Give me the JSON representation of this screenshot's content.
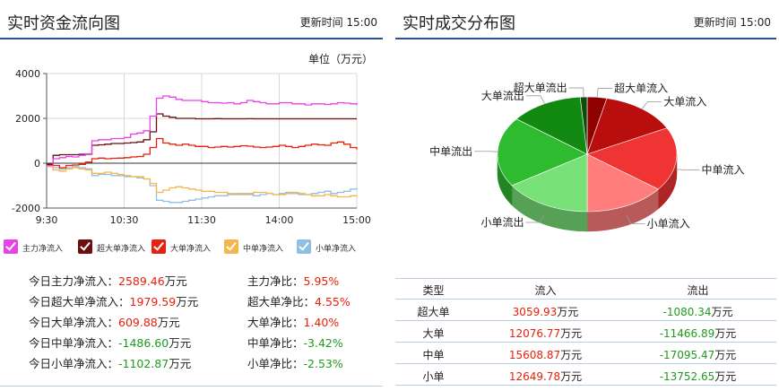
{
  "left_panel": {
    "title": "实时资金流向图",
    "update_label": "更新时间",
    "update_time": "15:00",
    "unit_label": "单位（万元）"
  },
  "right_panel": {
    "title": "实时成交分布图",
    "update_label": "更新时间",
    "update_time": "15:00"
  },
  "legend": [
    {
      "label": "主力净流入",
      "color": "#e843e8"
    },
    {
      "label": "超大单净流入",
      "color": "#6b0f0f"
    },
    {
      "label": "大单净流入",
      "color": "#e8200c"
    },
    {
      "label": "中单净流入",
      "color": "#f5b54a"
    },
    {
      "label": "小单净流入",
      "color": "#8fbfe3"
    }
  ],
  "stats": [
    {
      "left_label": "今日主力净流入：",
      "left_value": "2589.46",
      "left_unit": "万元",
      "left_sign": "pos",
      "right_label": "主力净比：",
      "right_value": "5.95%",
      "right_sign": "pos"
    },
    {
      "left_label": "今日超大单净流入：",
      "left_value": "1979.59",
      "left_unit": "万元",
      "left_sign": "pos",
      "right_label": "超大单净比：",
      "right_value": "4.55%",
      "right_sign": "pos"
    },
    {
      "left_label": "今日大单净流入：",
      "left_value": "609.88",
      "left_unit": "万元",
      "left_sign": "pos",
      "right_label": "大单净比：",
      "right_value": "1.40%",
      "right_sign": "pos"
    },
    {
      "left_label": "今日中单净流入：",
      "left_value": "-1486.60",
      "left_unit": "万元",
      "left_sign": "neg",
      "right_label": "中单净比：",
      "right_value": "-3.42%",
      "right_sign": "neg"
    },
    {
      "left_label": "今日小单净流入：",
      "left_value": "-1102.87",
      "left_unit": "万元",
      "left_sign": "neg",
      "right_label": "小单净比：",
      "right_value": "-2.53%",
      "right_sign": "neg"
    }
  ],
  "table": {
    "headers": [
      "类型",
      "流入",
      "流出"
    ],
    "unit": "万元",
    "rows": [
      {
        "type": "超大单",
        "inflow": "3059.93",
        "outflow": "-1080.34"
      },
      {
        "type": "大单",
        "inflow": "12076.77",
        "outflow": "-11466.89"
      },
      {
        "type": "中单",
        "inflow": "15608.87",
        "outflow": "-17095.47"
      },
      {
        "type": "小单",
        "inflow": "12649.78",
        "outflow": "-13752.65"
      }
    ]
  },
  "chart_data": [
    {
      "type": "line",
      "title": "实时资金流向图",
      "ylabel": "单位（万元）",
      "xlabel": "",
      "x_ticks": [
        "9:30",
        "10:30",
        "11:30",
        "14:00",
        "15:00"
      ],
      "y_ticks": [
        4000,
        2000,
        0,
        -2000
      ],
      "ylim": [
        -2000,
        4000
      ],
      "grid": true,
      "legend_position": "bottom",
      "x": [
        0,
        5,
        10,
        15,
        20,
        25,
        30,
        35,
        40,
        45,
        50,
        55,
        60,
        65,
        70,
        75,
        80,
        85,
        90,
        95,
        100,
        105,
        110,
        115,
        120,
        125,
        130,
        135,
        140,
        145,
        150,
        155,
        160,
        165,
        170,
        175,
        180,
        185,
        190,
        195,
        200,
        205,
        210,
        215,
        220,
        225,
        230,
        235,
        240
      ],
      "series": [
        {
          "name": "主力净流入",
          "color": "#e843e8",
          "values": [
            -100,
            200,
            250,
            300,
            280,
            350,
            420,
            1000,
            1050,
            1050,
            1100,
            1100,
            1150,
            1300,
            1350,
            1450,
            2100,
            2900,
            3000,
            2950,
            2850,
            2800,
            2800,
            2800,
            2750,
            2700,
            2700,
            2680,
            2700,
            2650,
            2700,
            2800,
            2750,
            2700,
            2650,
            2650,
            2700,
            2700,
            2650,
            2650,
            2600,
            2650,
            2650,
            2620,
            2650,
            2700,
            2680,
            2650,
            2589
          ]
        },
        {
          "name": "超大单净流入",
          "color": "#6b0f0f",
          "values": [
            -50,
            350,
            380,
            380,
            380,
            400,
            400,
            800,
            820,
            850,
            880,
            880,
            900,
            920,
            950,
            1050,
            1400,
            2200,
            2100,
            2050,
            2000,
            2000,
            2000,
            1980,
            1980,
            1980,
            1990,
            1980,
            1980,
            1980,
            1980,
            1985,
            1980,
            1980,
            1980,
            1980,
            1980,
            1980,
            1980,
            1980,
            1980,
            1980,
            1980,
            1980,
            1980,
            1980,
            1980,
            1980,
            1980
          ]
        },
        {
          "name": "大单净流入",
          "color": "#e8200c",
          "values": [
            -50,
            -100,
            -200,
            -100,
            -80,
            -50,
            50,
            200,
            230,
            200,
            220,
            230,
            250,
            280,
            300,
            400,
            700,
            1100,
            900,
            850,
            800,
            850,
            800,
            750,
            750,
            700,
            720,
            750,
            720,
            750,
            780,
            760,
            720,
            700,
            720,
            750,
            800,
            750,
            700,
            750,
            800,
            850,
            820,
            800,
            900,
            950,
            850,
            700,
            610
          ]
        },
        {
          "name": "中单净流入",
          "color": "#f5b54a",
          "values": [
            -150,
            -300,
            -350,
            -250,
            -200,
            -250,
            -300,
            -450,
            -450,
            -400,
            -450,
            -500,
            -550,
            -600,
            -600,
            -700,
            -900,
            -1300,
            -1200,
            -1100,
            -1050,
            -1100,
            -1150,
            -1200,
            -1250,
            -1250,
            -1300,
            -1300,
            -1350,
            -1350,
            -1400,
            -1350,
            -1300,
            -1300,
            -1350,
            -1400,
            -1400,
            -1350,
            -1300,
            -1350,
            -1400,
            -1450,
            -1450,
            -1400,
            -1450,
            -1500,
            -1500,
            -1450,
            -1487
          ]
        },
        {
          "name": "小单净流入",
          "color": "#8fbfe3",
          "values": [
            -100,
            -200,
            -250,
            -200,
            -150,
            -200,
            -250,
            -550,
            -500,
            -500,
            -550,
            -550,
            -600,
            -600,
            -650,
            -700,
            -1000,
            -1650,
            -1700,
            -1750,
            -1750,
            -1700,
            -1650,
            -1600,
            -1550,
            -1500,
            -1450,
            -1450,
            -1400,
            -1400,
            -1350,
            -1400,
            -1450,
            -1400,
            -1350,
            -1400,
            -1350,
            -1300,
            -1350,
            -1400,
            -1400,
            -1350,
            -1300,
            -1250,
            -1350,
            -1300,
            -1250,
            -1150,
            -1103
          ]
        }
      ]
    },
    {
      "type": "pie",
      "title": "实时成交分布图",
      "slices": [
        {
          "label": "超大单流入",
          "value": 3059.93,
          "color": "#8f0000"
        },
        {
          "label": "大单流入",
          "value": 12076.77,
          "color": "#b80e0e"
        },
        {
          "label": "中单流入",
          "value": 15608.87,
          "color": "#f03333"
        },
        {
          "label": "小单流入",
          "value": 12649.78,
          "color": "#ff7d7d"
        },
        {
          "label": "小单流出",
          "value": 13752.65,
          "color": "#77e077"
        },
        {
          "label": "中单流出",
          "value": 17095.47,
          "color": "#2fbb2f"
        },
        {
          "label": "大单流出",
          "value": 11466.89,
          "color": "#128a12"
        },
        {
          "label": "超大单流出",
          "value": 1080.34,
          "color": "#0b4f0b"
        }
      ]
    }
  ]
}
